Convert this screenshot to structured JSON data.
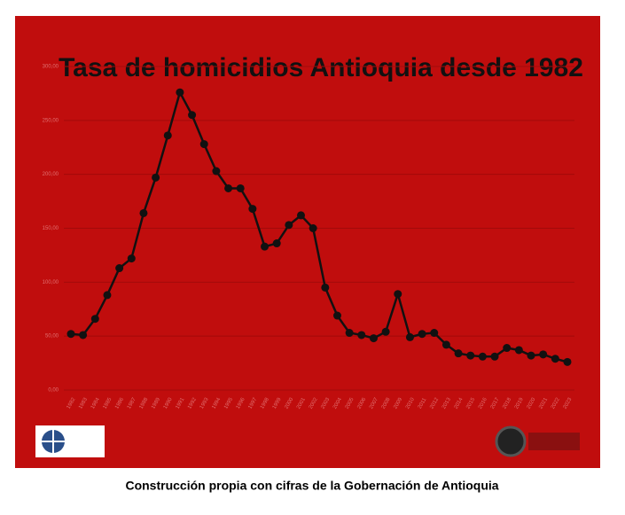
{
  "chart_data": {
    "type": "line",
    "title": "Tasa de homicidios Antioquia desde 1982",
    "caption": "Construcción propia con cifras de la Gobernación de Antioquia",
    "categories": [
      "1982",
      "1983",
      "1984",
      "1985",
      "1986",
      "1987",
      "1988",
      "1989",
      "1990",
      "1991",
      "1992",
      "1993",
      "1994",
      "1995",
      "1996",
      "1997",
      "1998",
      "1999",
      "2000",
      "2001",
      "2002",
      "2003",
      "2004",
      "2005",
      "2006",
      "2007",
      "2008",
      "2009",
      "2010",
      "2011",
      "2012",
      "2013",
      "2014",
      "2015",
      "2016",
      "2017",
      "2018",
      "2019",
      "2020",
      "2021",
      "2022",
      "2023"
    ],
    "series": [
      {
        "name": "Tasa de homicidios",
        "color": "#111111",
        "values": [
          52,
          51,
          66,
          88,
          113,
          122,
          164,
          197,
          236,
          276,
          255,
          228,
          203,
          187,
          187,
          168,
          133,
          136,
          153,
          162,
          150,
          95,
          69,
          53,
          51,
          48,
          54,
          89,
          49,
          52,
          53,
          42,
          34,
          32,
          31,
          31,
          39,
          37,
          32,
          33,
          29,
          26
        ]
      }
    ],
    "ylim": [
      0,
      300
    ],
    "yticks": [
      {
        "value": 0,
        "label": "0,00"
      },
      {
        "value": 50,
        "label": "50,00"
      },
      {
        "value": 100,
        "label": "100,00"
      },
      {
        "value": 150,
        "label": "150,00"
      },
      {
        "value": 200,
        "label": "200,00"
      },
      {
        "value": 250,
        "label": "250,00"
      },
      {
        "value": 300,
        "label": "300,00"
      }
    ],
    "grid": true,
    "background": "#c00d0d"
  }
}
